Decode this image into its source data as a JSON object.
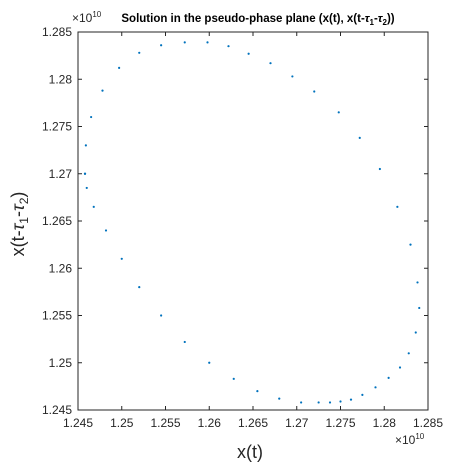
{
  "chart_data": {
    "type": "scatter",
    "title_parts": {
      "prefix": "Solution in the pseudo-phase plane (x(t), x(t-",
      "tau1": "τ",
      "sub1": "1",
      "dash": "-",
      "tau2": "τ",
      "sub2": "2",
      "suffix": "))"
    },
    "xlabel": "x(t)",
    "ylabel_parts": {
      "prefix": "x(t-",
      "tau1": "τ",
      "sub1": "1",
      "dash": "-",
      "tau2": "τ",
      "sub2": "2",
      "suffix": ")"
    },
    "x_exponent_base": "×10",
    "x_exponent": "10",
    "y_exponent_base": "×10",
    "y_exponent": "10",
    "xlim": [
      1.245,
      1.285
    ],
    "ylim": [
      1.245,
      1.285
    ],
    "xticks": [
      "1.245",
      "1.25",
      "1.255",
      "1.26",
      "1.265",
      "1.27",
      "1.275",
      "1.28",
      "1.285"
    ],
    "yticks": [
      "1.245",
      "1.25",
      "1.255",
      "1.26",
      "1.265",
      "1.27",
      "1.275",
      "1.28",
      "1.285"
    ],
    "grid": false,
    "marker_color": "#0072BD",
    "series": [
      {
        "x": [
          1.2458,
          1.2459,
          1.2465,
          1.2478,
          1.2497,
          1.252,
          1.2545,
          1.2572,
          1.2598,
          1.2622,
          1.2645,
          1.267,
          1.2695,
          1.272,
          1.2748,
          1.2772,
          1.2795,
          1.2815,
          1.283,
          1.2838,
          1.284,
          1.2836,
          1.2828,
          1.2818,
          1.2805,
          1.279,
          1.2775,
          1.2762,
          1.275,
          1.2738,
          1.2725,
          1.2705,
          1.268,
          1.2655,
          1.2628,
          1.26,
          1.2572,
          1.2545,
          1.252,
          1.25,
          1.2482,
          1.2468,
          1.246,
          1.2458
        ],
        "y": [
          1.27,
          1.273,
          1.276,
          1.2788,
          1.2812,
          1.2828,
          1.2836,
          1.2839,
          1.2839,
          1.2835,
          1.2827,
          1.2817,
          1.2803,
          1.2787,
          1.2765,
          1.2738,
          1.2705,
          1.2665,
          1.2625,
          1.2585,
          1.2558,
          1.2532,
          1.251,
          1.2495,
          1.2484,
          1.2474,
          1.2466,
          1.2461,
          1.2459,
          1.2458,
          1.2458,
          1.2458,
          1.2462,
          1.247,
          1.2483,
          1.25,
          1.2522,
          1.255,
          1.258,
          1.261,
          1.264,
          1.2665,
          1.2685,
          1.27
        ]
      }
    ]
  }
}
